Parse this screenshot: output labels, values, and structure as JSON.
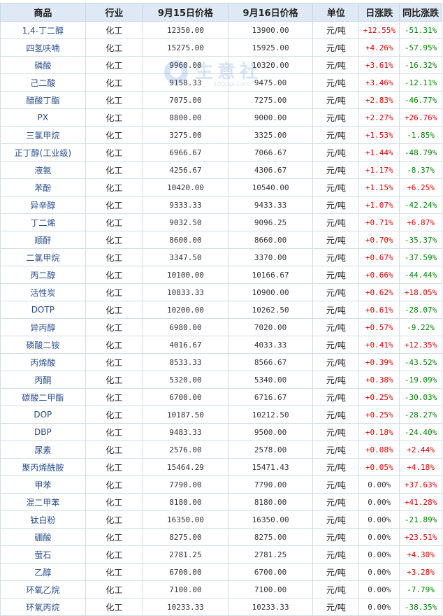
{
  "headers": [
    "商品",
    "行业",
    "9月15日价格",
    "9月16日价格",
    "单位",
    "日涨跌",
    "同比涨跌"
  ],
  "watermark": {
    "text": "生意社",
    "url": "100ppi.com"
  },
  "colors": {
    "up": "#e00000",
    "down": "#008000",
    "header_bg": "#dfe9f5",
    "link": "#2a4d8c"
  },
  "rows": [
    {
      "name": "1,4-丁二醇",
      "industry": "化工",
      "p1": "12350.00",
      "p2": "13900.00",
      "unit": "元/吨",
      "daily": "+12.55%",
      "yoy": "-51.31%"
    },
    {
      "name": "四氢呋喃",
      "industry": "化工",
      "p1": "15275.00",
      "p2": "15925.00",
      "unit": "元/吨",
      "daily": "+4.26%",
      "yoy": "-57.95%"
    },
    {
      "name": "磷酸",
      "industry": "化工",
      "p1": "9960.00",
      "p2": "10320.00",
      "unit": "元/吨",
      "daily": "+3.61%",
      "yoy": "-16.32%"
    },
    {
      "name": "己二酸",
      "industry": "化工",
      "p1": "9158.33",
      "p2": "9475.00",
      "unit": "元/吨",
      "daily": "+3.46%",
      "yoy": "-12.11%"
    },
    {
      "name": "醋酸丁酯",
      "industry": "化工",
      "p1": "7075.00",
      "p2": "7275.00",
      "unit": "元/吨",
      "daily": "+2.83%",
      "yoy": "-46.77%"
    },
    {
      "name": "PX",
      "industry": "化工",
      "p1": "8800.00",
      "p2": "9000.00",
      "unit": "元/吨",
      "daily": "+2.27%",
      "yoy": "+26.76%"
    },
    {
      "name": "三氯甲烷",
      "industry": "化工",
      "p1": "3275.00",
      "p2": "3325.00",
      "unit": "元/吨",
      "daily": "+1.53%",
      "yoy": "-1.85%"
    },
    {
      "name": "正丁醇(工业级)",
      "industry": "化工",
      "p1": "6966.67",
      "p2": "7066.67",
      "unit": "元/吨",
      "daily": "+1.44%",
      "yoy": "-48.79%"
    },
    {
      "name": "液氨",
      "industry": "化工",
      "p1": "4256.67",
      "p2": "4306.67",
      "unit": "元/吨",
      "daily": "+1.17%",
      "yoy": "-8.37%"
    },
    {
      "name": "苯酚",
      "industry": "化工",
      "p1": "10420.00",
      "p2": "10540.00",
      "unit": "元/吨",
      "daily": "+1.15%",
      "yoy": "+6.25%"
    },
    {
      "name": "异辛醇",
      "industry": "化工",
      "p1": "9333.33",
      "p2": "9433.33",
      "unit": "元/吨",
      "daily": "+1.07%",
      "yoy": "-42.24%"
    },
    {
      "name": "丁二烯",
      "industry": "化工",
      "p1": "9032.50",
      "p2": "9096.25",
      "unit": "元/吨",
      "daily": "+0.71%",
      "yoy": "+6.87%"
    },
    {
      "name": "顺酐",
      "industry": "化工",
      "p1": "8600.00",
      "p2": "8660.00",
      "unit": "元/吨",
      "daily": "+0.70%",
      "yoy": "-35.37%"
    },
    {
      "name": "二氯甲烷",
      "industry": "化工",
      "p1": "3347.50",
      "p2": "3370.00",
      "unit": "元/吨",
      "daily": "+0.67%",
      "yoy": "-37.59%"
    },
    {
      "name": "丙二醇",
      "industry": "化工",
      "p1": "10100.00",
      "p2": "10166.67",
      "unit": "元/吨",
      "daily": "+0.66%",
      "yoy": "-44.44%"
    },
    {
      "name": "活性炭",
      "industry": "化工",
      "p1": "10833.33",
      "p2": "10900.00",
      "unit": "元/吨",
      "daily": "+0.62%",
      "yoy": "+18.05%"
    },
    {
      "name": "DOTP",
      "industry": "化工",
      "p1": "10200.00",
      "p2": "10262.50",
      "unit": "元/吨",
      "daily": "+0.61%",
      "yoy": "-28.07%"
    },
    {
      "name": "异丙醇",
      "industry": "化工",
      "p1": "6980.00",
      "p2": "7020.00",
      "unit": "元/吨",
      "daily": "+0.57%",
      "yoy": "-9.22%"
    },
    {
      "name": "磷酸二铵",
      "industry": "化工",
      "p1": "4016.67",
      "p2": "4033.33",
      "unit": "元/吨",
      "daily": "+0.41%",
      "yoy": "+12.35%"
    },
    {
      "name": "丙烯酸",
      "industry": "化工",
      "p1": "8533.33",
      "p2": "8566.67",
      "unit": "元/吨",
      "daily": "+0.39%",
      "yoy": "-43.52%"
    },
    {
      "name": "丙酮",
      "industry": "化工",
      "p1": "5320.00",
      "p2": "5340.00",
      "unit": "元/吨",
      "daily": "+0.38%",
      "yoy": "-19.09%"
    },
    {
      "name": "碳酸二甲酯",
      "industry": "化工",
      "p1": "6700.00",
      "p2": "6716.67",
      "unit": "元/吨",
      "daily": "+0.25%",
      "yoy": "-30.03%"
    },
    {
      "name": "DOP",
      "industry": "化工",
      "p1": "10187.50",
      "p2": "10212.50",
      "unit": "元/吨",
      "daily": "+0.25%",
      "yoy": "-28.27%"
    },
    {
      "name": "DBP",
      "industry": "化工",
      "p1": "9483.33",
      "p2": "9500.00",
      "unit": "元/吨",
      "daily": "+0.18%",
      "yoy": "-24.40%"
    },
    {
      "name": "尿素",
      "industry": "化工",
      "p1": "2576.00",
      "p2": "2578.00",
      "unit": "元/吨",
      "daily": "+0.08%",
      "yoy": "+2.44%"
    },
    {
      "name": "聚丙烯酰胺",
      "industry": "化工",
      "p1": "15464.29",
      "p2": "15471.43",
      "unit": "元/吨",
      "daily": "+0.05%",
      "yoy": "+4.18%"
    },
    {
      "name": "甲苯",
      "industry": "化工",
      "p1": "7790.00",
      "p2": "7790.00",
      "unit": "元/吨",
      "daily": "0.00%",
      "yoy": "+37.63%"
    },
    {
      "name": "混二甲苯",
      "industry": "化工",
      "p1": "8180.00",
      "p2": "8180.00",
      "unit": "元/吨",
      "daily": "0.00%",
      "yoy": "+41.28%"
    },
    {
      "name": "钛白粉",
      "industry": "化工",
      "p1": "16350.00",
      "p2": "16350.00",
      "unit": "元/吨",
      "daily": "0.00%",
      "yoy": "-21.89%"
    },
    {
      "name": "硼酸",
      "industry": "化工",
      "p1": "8275.00",
      "p2": "8275.00",
      "unit": "元/吨",
      "daily": "0.00%",
      "yoy": "+23.51%"
    },
    {
      "name": "萤石",
      "industry": "化工",
      "p1": "2781.25",
      "p2": "2781.25",
      "unit": "元/吨",
      "daily": "0.00%",
      "yoy": "+4.30%"
    },
    {
      "name": "乙醇",
      "industry": "化工",
      "p1": "6700.00",
      "p2": "6700.00",
      "unit": "元/吨",
      "daily": "0.00%",
      "yoy": "+3.28%"
    },
    {
      "name": "环氧乙烷",
      "industry": "化工",
      "p1": "7100.00",
      "p2": "7100.00",
      "unit": "元/吨",
      "daily": "0.00%",
      "yoy": "-7.79%"
    },
    {
      "name": "环氧丙烷",
      "industry": "化工",
      "p1": "10233.33",
      "p2": "10233.33",
      "unit": "元/吨",
      "daily": "0.00%",
      "yoy": "-38.35%"
    }
  ]
}
